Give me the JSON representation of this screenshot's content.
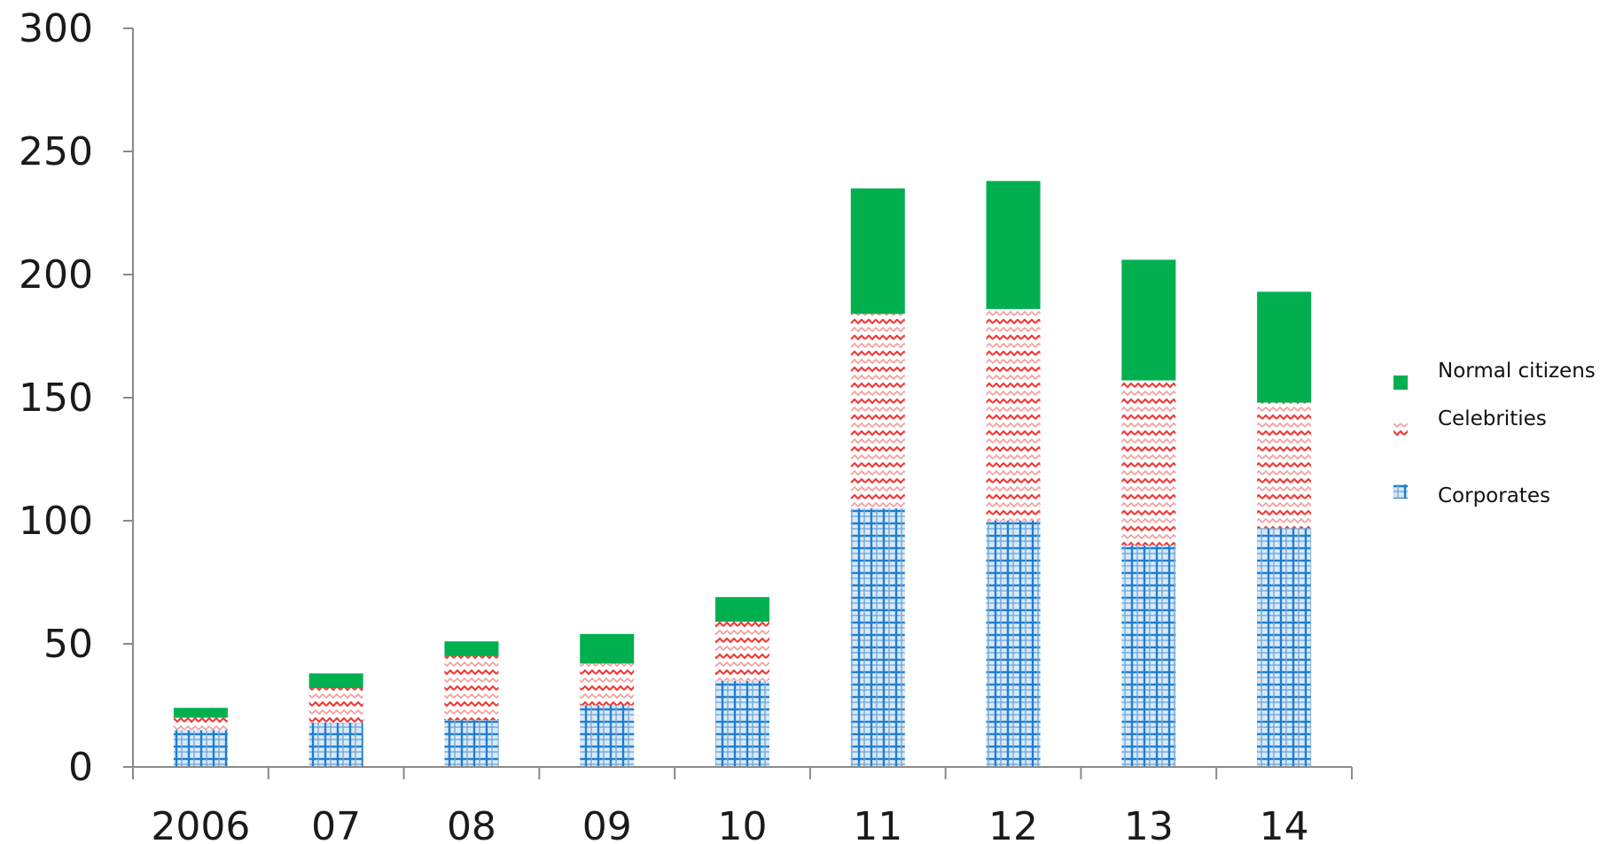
{
  "chart_data": {
    "type": "bar",
    "stacked": true,
    "categories": [
      "2006",
      "07",
      "08",
      "09",
      "10",
      "11",
      "12",
      "13",
      "14"
    ],
    "series": [
      {
        "name": "Corporates",
        "values": [
          15,
          18,
          19,
          25,
          35,
          105,
          100,
          90,
          97
        ],
        "color": "#1f7ed0",
        "pattern": "grid"
      },
      {
        "name": "Celebrities",
        "values": [
          5,
          14,
          26,
          17,
          24,
          79,
          86,
          67,
          51
        ],
        "color": "#ef3b3b",
        "pattern": "wave"
      },
      {
        "name": "Normal citizens",
        "values": [
          4,
          6,
          6,
          12,
          10,
          51,
          52,
          49,
          45
        ],
        "color": "#00b04f",
        "pattern": "solid"
      }
    ],
    "yticks": [
      "0",
      "50",
      "100",
      "150",
      "200",
      "250",
      "300"
    ],
    "ylim": [
      0,
      300
    ],
    "title": "",
    "xlabel": "",
    "ylabel": "",
    "grid": false,
    "legend": {
      "position": "right",
      "order": [
        "Normal citizens",
        "Celebrities",
        "Corporates"
      ]
    }
  }
}
